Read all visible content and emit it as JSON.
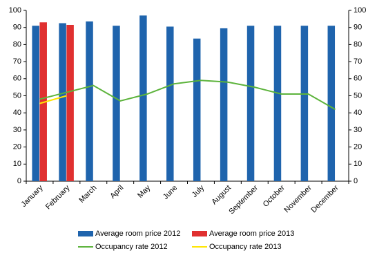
{
  "chart_data": {
    "type": "bar",
    "categories": [
      "January",
      "February",
      "March",
      "April",
      "May",
      "June",
      "July",
      "August",
      "September",
      "October",
      "November",
      "December"
    ],
    "series": [
      {
        "name": "Average room price 2012",
        "type": "bar",
        "color": "#1f64ad",
        "values": [
          91,
          92.5,
          93.5,
          91,
          97,
          90.5,
          83.5,
          89.5,
          91,
          91,
          91,
          91
        ]
      },
      {
        "name": "Average room price 2013",
        "type": "bar",
        "color": "#e03030",
        "values": [
          93,
          91.5,
          null,
          null,
          null,
          null,
          null,
          null,
          null,
          null,
          null,
          null
        ]
      },
      {
        "name": "Occupancy rate 2012",
        "type": "line",
        "axis": "y2",
        "color": "#5cb33b",
        "values": [
          48,
          52,
          56,
          47,
          51,
          57,
          59,
          58,
          55,
          51,
          51,
          42
        ]
      },
      {
        "name": "Occupancy rate 2013",
        "type": "line",
        "axis": "y2",
        "color": "#ffe500",
        "values": [
          45.5,
          50,
          null,
          null,
          null,
          null,
          null,
          null,
          null,
          null,
          null,
          null
        ]
      }
    ],
    "ylim": [
      0,
      100
    ],
    "yticks": [
      0,
      10,
      20,
      30,
      40,
      50,
      60,
      70,
      80,
      90,
      100
    ],
    "y2lim": [
      0,
      100
    ],
    "y2ticks": [
      0,
      10,
      20,
      30,
      40,
      50,
      60,
      70,
      80,
      90,
      100
    ],
    "grid": false
  }
}
